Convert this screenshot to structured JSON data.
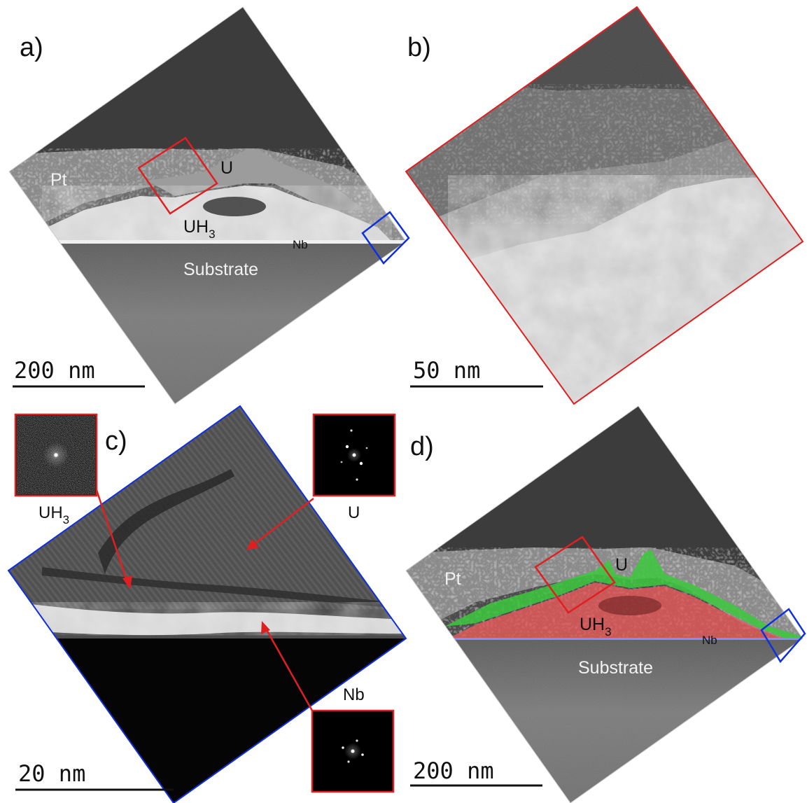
{
  "panels": {
    "a": {
      "label": "a)",
      "layers": {
        "pt": "Pt",
        "u": "U",
        "uh3_base": "UH",
        "uh3_sub": "3",
        "nb": "Nb",
        "substrate": "Substrate"
      },
      "scale_bar": "200 nm"
    },
    "b": {
      "label": "b)",
      "scale_bar": "50 nm"
    },
    "c": {
      "label": "c)",
      "fft": {
        "uh3": {
          "base": "UH",
          "sub": "3"
        },
        "u": "U",
        "nb": "Nb"
      },
      "scale_bar": "20 nm"
    },
    "d": {
      "label": "d)",
      "layers": {
        "pt": "Pt",
        "u": "U",
        "uh3_base": "UH",
        "uh3_sub": "3",
        "nb": "Nb",
        "substrate": "Substrate"
      },
      "scale_bar": "200 nm"
    }
  },
  "colors": {
    "red_box": "#e02020",
    "blue_box": "#1030e0",
    "u_overlay": "#3cc83c",
    "uh3_overlay": "#e85a5a",
    "nb_line": "#8888ff"
  }
}
